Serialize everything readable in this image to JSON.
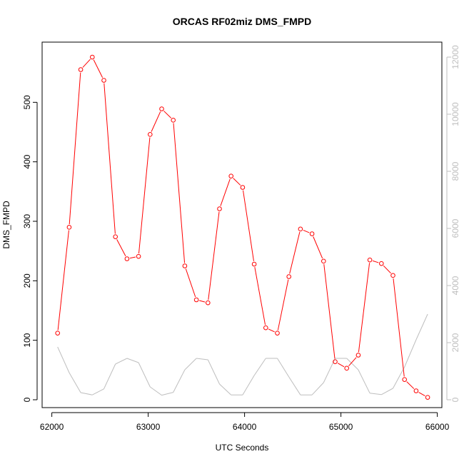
{
  "chart_data": {
    "type": "line",
    "title": "ORCAS RF02miz DMS_FMPD",
    "xlabel": "UTC Seconds",
    "ylabel": "DMS_FMPD",
    "xlim": [
      62000,
      66000
    ],
    "ylim": [
      0,
      600
    ],
    "y2lim": [
      0,
      12500
    ],
    "x_ticks": [
      62000,
      63000,
      64000,
      65000,
      66000
    ],
    "y_ticks": [
      0,
      100,
      200,
      300,
      400,
      500
    ],
    "y2_ticks": [
      0,
      2000,
      4000,
      6000,
      8000,
      10000,
      12000
    ],
    "grid": false,
    "series": [
      {
        "axis": "left",
        "color": "#ff0000",
        "markers": "open-circle",
        "x": [
          62060,
          62180,
          62300,
          62420,
          62540,
          62660,
          62780,
          62900,
          63020,
          63140,
          63260,
          63380,
          63500,
          63620,
          63740,
          63860,
          63980,
          64100,
          64220,
          64340,
          64460,
          64580,
          64700,
          64820,
          64940,
          65060,
          65180,
          65300,
          65420,
          65540,
          65660,
          65780,
          65900
        ],
        "values": [
          112,
          290,
          555,
          576,
          537,
          274,
          237,
          241,
          446,
          489,
          470,
          225,
          168,
          163,
          321,
          376,
          357,
          228,
          121,
          112,
          207,
          287,
          279,
          233,
          64,
          53,
          75,
          235,
          229,
          209,
          34,
          15,
          4
        ]
      },
      {
        "axis": "right",
        "color": "#bebebe",
        "markers": "none",
        "x": [
          62060,
          62180,
          62300,
          62420,
          62540,
          62660,
          62780,
          62900,
          63020,
          63140,
          63260,
          63380,
          63500,
          63620,
          63740,
          63860,
          63980,
          64100,
          64220,
          64340,
          64460,
          64580,
          64700,
          64820,
          64940,
          65060,
          65180,
          65300,
          65420,
          65540,
          65660,
          65780,
          65900
        ],
        "values": [
          1850,
          950,
          250,
          170,
          380,
          1250,
          1450,
          1300,
          450,
          160,
          260,
          1050,
          1450,
          1400,
          550,
          170,
          170,
          850,
          1450,
          1450,
          800,
          170,
          170,
          600,
          1450,
          1450,
          1050,
          230,
          180,
          400,
          1150,
          2100,
          3000
        ]
      }
    ]
  }
}
